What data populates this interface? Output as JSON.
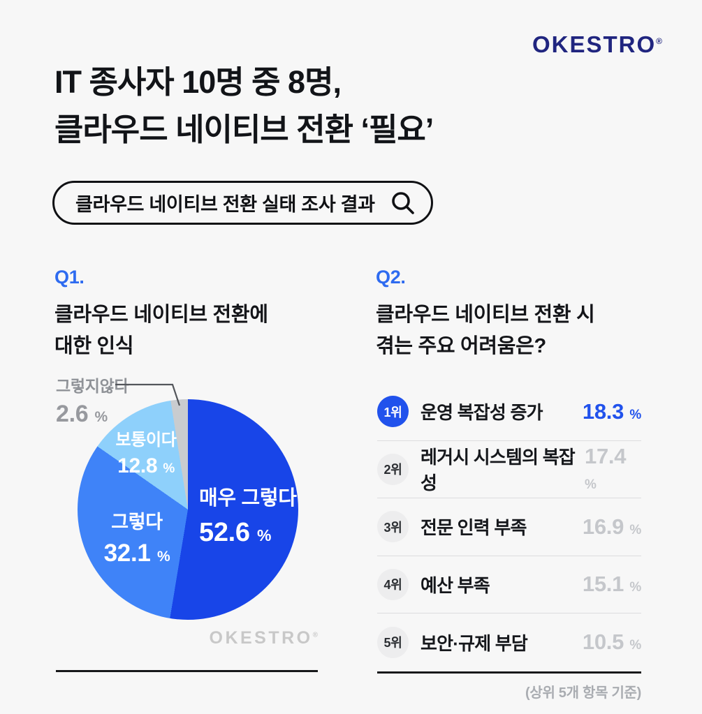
{
  "page": {
    "background": "#f7f7f7"
  },
  "logo": {
    "text": "OKESTRO",
    "mark": "®",
    "color": "#20257f"
  },
  "header": {
    "title_line1": "IT 종사자 10명 중 8명,",
    "title_line2": "클라우드 네이티브 전환 ‘필요’"
  },
  "search": {
    "query": "클라우드 네이티브 전환 실태 조사 결과",
    "icon": "magnifier-icon"
  },
  "q1": {
    "label": "Q1.",
    "line1": "클라우드 네이티브 전환에",
    "line2": "대한 인식"
  },
  "q2": {
    "label": "Q2.",
    "line1": "클라우드 네이티브 전환 시",
    "line2": "겪는 주요 어려움은?"
  },
  "watermark": {
    "text": "OKESTRO",
    "mark": "®"
  },
  "footnote": "(상위 5개 항목 기준)",
  "colors": {
    "accent_blue": "#2152ec",
    "q_label_blue": "#2e6bf0",
    "rank_muted": "#c5c7cb",
    "divider": "#dcdcde",
    "rule": "#17181a",
    "callout_gray": "#97999e",
    "watermark_gray": "#c8c8c8"
  },
  "chart_data": [
    {
      "type": "pie",
      "title": "클라우드 네이티브 전환에 대한 인식",
      "labels": [
        "매우 그렇다",
        "그렇다",
        "보통이다",
        "그렇지않다"
      ],
      "values": [
        52.6,
        32.1,
        12.8,
        2.6
      ],
      "unit": "%",
      "colors": [
        "#1845e8",
        "#3f83f8",
        "#8ed0fb",
        "#c9cccf"
      ],
      "layout": "starts at 12 o'clock, clockwise; smallest slice called out with leader line"
    },
    {
      "type": "table",
      "title": "클라우드 네이티브 전환 시 겪는 주요 어려움은?",
      "unit": "%",
      "rows": [
        {
          "rank": "1위",
          "label": "운영 복잡성 증가",
          "value": 18.3
        },
        {
          "rank": "2위",
          "label": "레거시 시스템의 복잡성",
          "value": 17.4
        },
        {
          "rank": "3위",
          "label": "전문 인력 부족",
          "value": 16.9
        },
        {
          "rank": "4위",
          "label": "예산 부족",
          "value": 15.1
        },
        {
          "rank": "5위",
          "label": "보안·규제 부담",
          "value": 10.5
        }
      ]
    }
  ]
}
